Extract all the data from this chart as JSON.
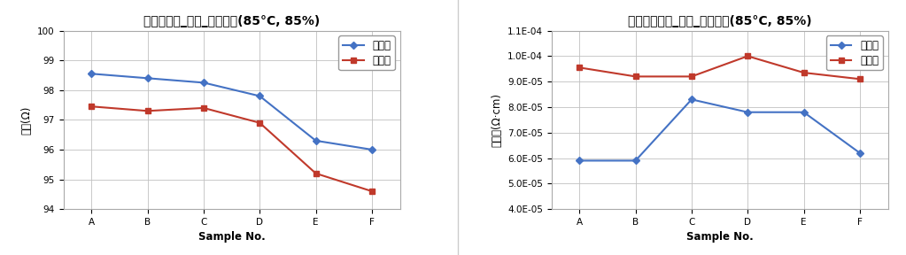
{
  "chart1": {
    "title": "저항균일도_완품_항온항습(85°C, 85%)",
    "xlabel": "Sample No.",
    "ylabel": "저항(Ω)",
    "categories": [
      "A",
      "B",
      "C",
      "D",
      "E",
      "F"
    ],
    "series_before": [
      98.55,
      98.4,
      98.25,
      97.8,
      96.3,
      96.0
    ],
    "series_after": [
      97.45,
      97.3,
      97.4,
      96.9,
      95.2,
      94.6
    ],
    "ylim": [
      94,
      100
    ],
    "yticks": [
      94,
      95,
      96,
      97,
      98,
      99,
      100
    ],
    "color_before": "#4472C4",
    "color_after": "#C0392B",
    "legend_before": "시험전",
    "legend_after": "시험후"
  },
  "chart2": {
    "title": "비저항균일도_완품_항온항습(85°C, 85%)",
    "xlabel": "Sample No.",
    "ylabel": "비저항(Ω·cm)",
    "categories": [
      "A",
      "B",
      "C",
      "D",
      "E",
      "F"
    ],
    "series_before": [
      5.9e-05,
      5.9e-05,
      8.3e-05,
      7.8e-05,
      7.8e-05,
      6.2e-05
    ],
    "series_after": [
      9.55e-05,
      9.2e-05,
      9.2e-05,
      0.0001,
      9.35e-05,
      9.1e-05
    ],
    "ylim": [
      4e-05,
      0.00011
    ],
    "yticks": [
      4e-05,
      5e-05,
      6e-05,
      7e-05,
      8e-05,
      9e-05,
      0.0001,
      0.00011
    ],
    "color_before": "#4472C4",
    "color_after": "#C0392B",
    "legend_before": "시험전",
    "legend_after": "시험후"
  },
  "bg_color": "#FFFFFF",
  "plot_bg_color": "#FFFFFF",
  "grid_color": "#C0C0C0",
  "title_fontsize": 10,
  "label_fontsize": 8.5,
  "tick_fontsize": 7.5,
  "legend_fontsize": 8.5
}
